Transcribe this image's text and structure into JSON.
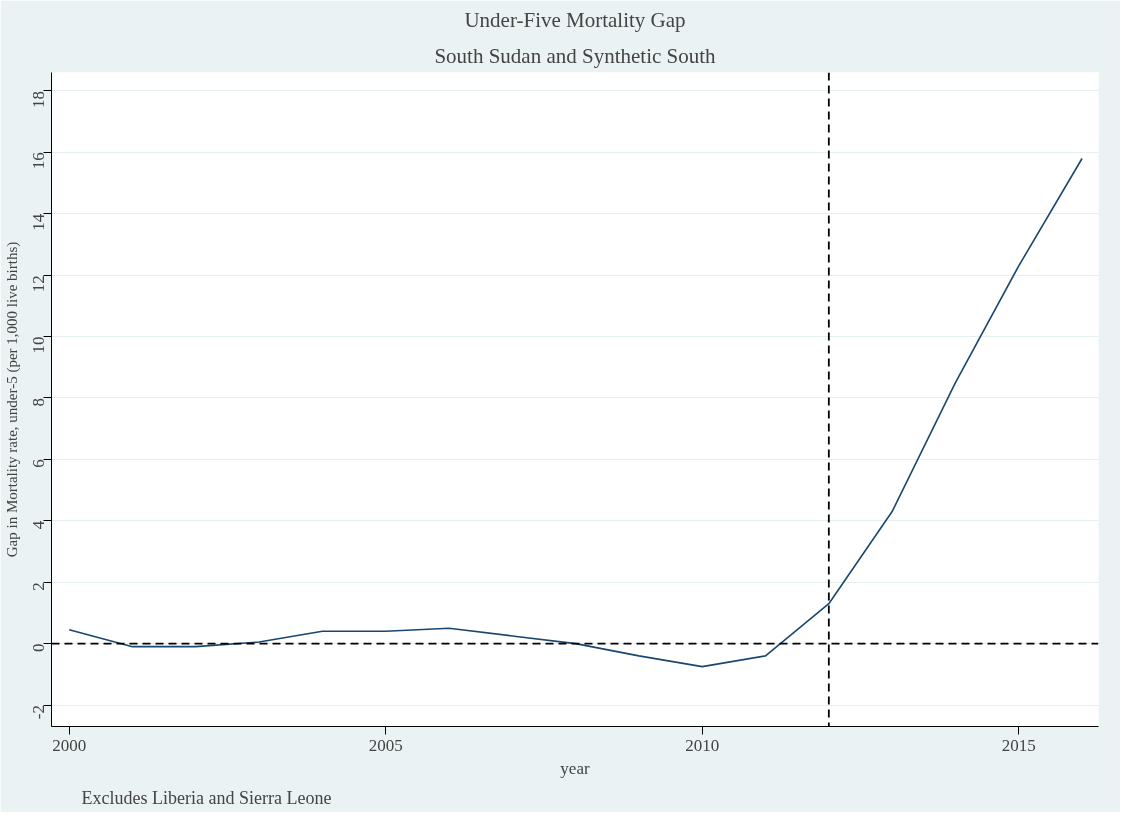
{
  "chart_data": {
    "type": "line",
    "title": "Under-Five Mortality Gap",
    "subtitle": "South Sudan and Synthetic South",
    "xlabel": "year",
    "ylabel": "Gap in Mortality rate, under-5 (per 1,000 live births)",
    "annotations": [
      "Excludes Liberia and Sierra Leone"
    ],
    "x": [
      2000,
      2001,
      2002,
      2003,
      2004,
      2005,
      2006,
      2007,
      2008,
      2009,
      2010,
      2011,
      2012,
      2013,
      2014,
      2015,
      2016
    ],
    "series": [
      {
        "color": "#1a476f",
        "values": [
          0.45,
          -0.1,
          -0.1,
          0.05,
          0.4,
          0.4,
          0.5,
          0.25,
          0,
          -0.4,
          -0.75,
          -0.4,
          1.3,
          4.3,
          8.5,
          12.3,
          15.8
        ]
      }
    ],
    "xlim": [
      1999.72,
      2016.26
    ],
    "ylim": [
      -2.7,
      18.6
    ],
    "xticks": [
      2000,
      2005,
      2010,
      2015
    ],
    "yticks": [
      -2,
      0,
      2,
      4,
      6,
      8,
      10,
      12,
      14,
      16,
      18
    ],
    "grid": "y",
    "line_style": "solid",
    "marker": "none",
    "ref_lines": [
      {
        "axis": "y",
        "value": 0,
        "color": "#000000",
        "line_style": "dashed"
      },
      {
        "axis": "x",
        "value": 2012,
        "color": "#000000",
        "line_style": "dashed"
      }
    ]
  }
}
